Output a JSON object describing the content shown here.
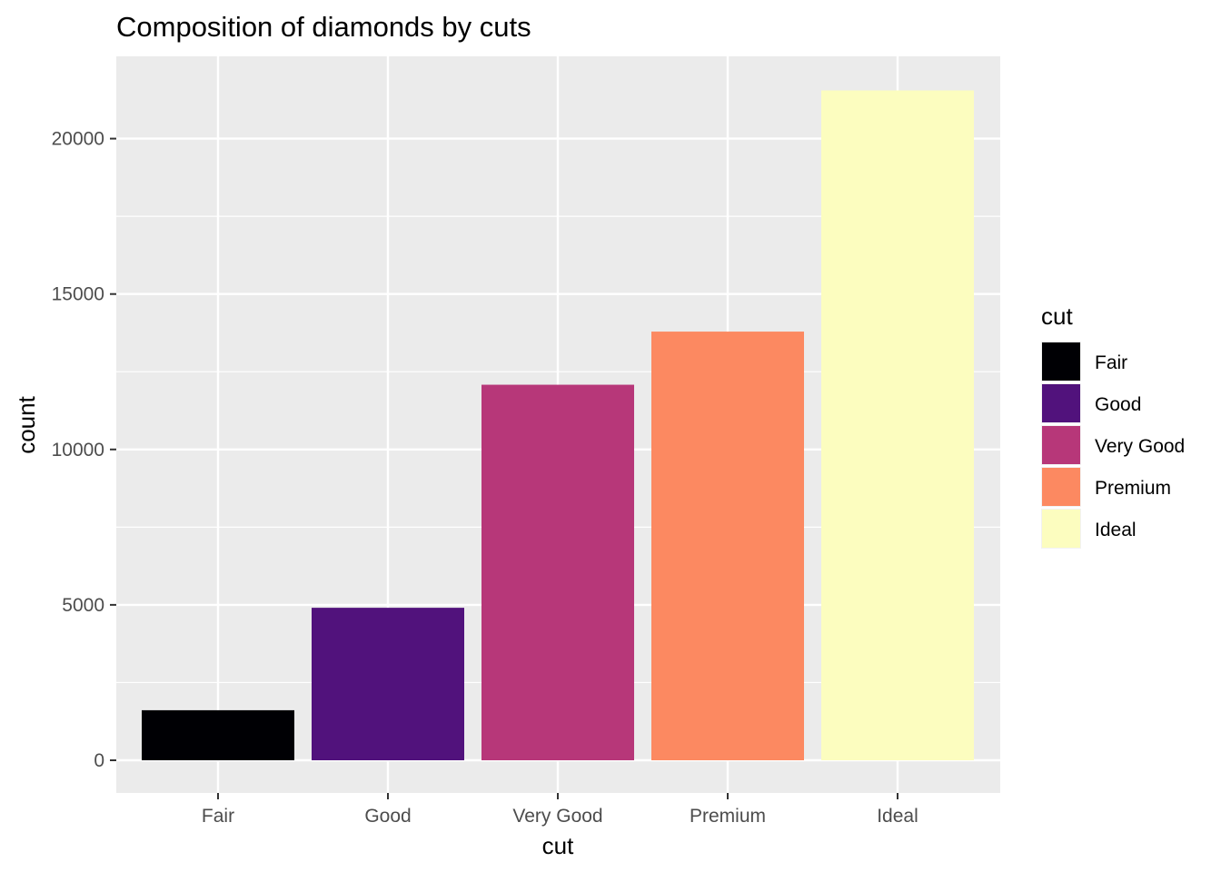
{
  "chart_data": {
    "type": "bar",
    "title": "Composition of diamonds by cuts",
    "xlabel": "cut",
    "ylabel": "count",
    "categories": [
      "Fair",
      "Good",
      "Very Good",
      "Premium",
      "Ideal"
    ],
    "values": [
      1610,
      4906,
      12082,
      13791,
      21551
    ],
    "colors": [
      "#000004",
      "#51127C",
      "#B73779",
      "#FC8961",
      "#FCFDBF"
    ],
    "ylim": [
      0,
      22600
    ],
    "yticks": [
      0,
      5000,
      10000,
      15000,
      20000
    ],
    "grid": true,
    "panel_background": "#EBEBEB",
    "gridline_color": "#FFFFFF",
    "legend": {
      "title": "cut",
      "placement": "right",
      "items": [
        "Fair",
        "Good",
        "Very Good",
        "Premium",
        "Ideal"
      ]
    }
  }
}
